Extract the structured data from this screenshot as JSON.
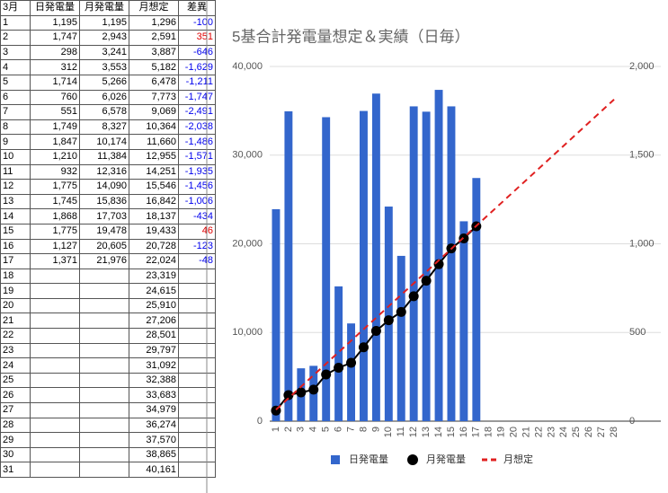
{
  "table": {
    "header": [
      "3月",
      "日発電量",
      "月発電量",
      "月想定",
      "差異"
    ],
    "rows": [
      [
        "1",
        "1,195",
        "1,195",
        "1,296",
        "-100"
      ],
      [
        "2",
        "1,747",
        "2,943",
        "2,591",
        "351"
      ],
      [
        "3",
        "298",
        "3,241",
        "3,887",
        "-646"
      ],
      [
        "4",
        "312",
        "3,553",
        "5,182",
        "-1,629"
      ],
      [
        "5",
        "1,714",
        "5,266",
        "6,478",
        "-1,211"
      ],
      [
        "6",
        "760",
        "6,026",
        "7,773",
        "-1,747"
      ],
      [
        "7",
        "551",
        "6,578",
        "9,069",
        "-2,491"
      ],
      [
        "8",
        "1,749",
        "8,327",
        "10,364",
        "-2,038"
      ],
      [
        "9",
        "1,847",
        "10,174",
        "11,660",
        "-1,486"
      ],
      [
        "10",
        "1,210",
        "11,384",
        "12,955",
        "-1,571"
      ],
      [
        "11",
        "932",
        "12,316",
        "14,251",
        "-1,935"
      ],
      [
        "12",
        "1,775",
        "14,090",
        "15,546",
        "-1,456"
      ],
      [
        "13",
        "1,745",
        "15,836",
        "16,842",
        "-1,006"
      ],
      [
        "14",
        "1,868",
        "17,703",
        "18,137",
        "-434"
      ],
      [
        "15",
        "1,775",
        "19,478",
        "19,433",
        "46"
      ],
      [
        "16",
        "1,127",
        "20,605",
        "20,728",
        "-123"
      ],
      [
        "17",
        "1,371",
        "21,976",
        "22,024",
        "-48"
      ],
      [
        "18",
        null,
        null,
        "23,319",
        null
      ],
      [
        "19",
        null,
        null,
        "24,615",
        null
      ],
      [
        "20",
        null,
        null,
        "25,910",
        null
      ],
      [
        "21",
        null,
        null,
        "27,206",
        null
      ],
      [
        "22",
        null,
        null,
        "28,501",
        null
      ],
      [
        "23",
        null,
        null,
        "29,797",
        null
      ],
      [
        "24",
        null,
        null,
        "31,092",
        null
      ],
      [
        "25",
        null,
        null,
        "32,388",
        null
      ],
      [
        "26",
        null,
        null,
        "33,683",
        null
      ],
      [
        "27",
        null,
        null,
        "34,979",
        null
      ],
      [
        "28",
        null,
        null,
        "36,274",
        null
      ],
      [
        "29",
        null,
        null,
        "37,570",
        null
      ],
      [
        "30",
        null,
        null,
        "38,865",
        null
      ],
      [
        "31",
        null,
        null,
        "40,161",
        null
      ]
    ],
    "positive_color": "#e00000",
    "negative_color": "#0000ee"
  },
  "chart_data": {
    "type": "combo",
    "title": "5基合計発電量想定＆実績（日毎）",
    "categories": [
      "1",
      "2",
      "3",
      "4",
      "5",
      "6",
      "7",
      "8",
      "9",
      "10",
      "11",
      "12",
      "13",
      "14",
      "15",
      "16",
      "17",
      "18",
      "19",
      "20",
      "21",
      "22",
      "23",
      "24",
      "25",
      "26",
      "27",
      "28"
    ],
    "series": [
      {
        "name": "日発電量",
        "type": "bar",
        "axis": "y2",
        "color": "#3366cc",
        "values": [
          1195,
          1747,
          298,
          312,
          1714,
          760,
          551,
          1749,
          1847,
          1210,
          932,
          1775,
          1745,
          1868,
          1775,
          1127,
          1371,
          null,
          null,
          null,
          null,
          null,
          null,
          null,
          null,
          null,
          null,
          null
        ]
      },
      {
        "name": "月発電量",
        "type": "line",
        "color": "#000000",
        "values": [
          1195,
          2943,
          3241,
          3553,
          5266,
          6026,
          6578,
          8327,
          10174,
          11384,
          12316,
          14090,
          15836,
          17703,
          19478,
          20605,
          21976,
          null,
          null,
          null,
          null,
          null,
          null,
          null,
          null,
          null,
          null,
          null
        ]
      },
      {
        "name": "月想定",
        "type": "dashed",
        "color": "#e02020",
        "values": [
          1296,
          2591,
          3887,
          5182,
          6478,
          7773,
          9069,
          10364,
          11660,
          12955,
          14251,
          15546,
          16842,
          18137,
          19433,
          20728,
          22024,
          23319,
          24615,
          25910,
          27206,
          28501,
          29797,
          31092,
          32388,
          33683,
          34979,
          36274
        ]
      }
    ],
    "ylim": [
      0,
      40000
    ],
    "yticks": [
      0,
      {
        "value": 10000,
        "label": "10,000"
      },
      {
        "value": 20000,
        "label": "20,000"
      },
      {
        "value": 30000,
        "label": "30,000"
      },
      {
        "value": 40000,
        "label": "40,000"
      }
    ],
    "y2lim": [
      0,
      2000
    ],
    "y2ticks": [
      0,
      500,
      {
        "value": 1000,
        "label": "1,000"
      },
      {
        "value": 1500,
        "label": "1,500"
      },
      {
        "value": 2000,
        "label": "2,000"
      }
    ],
    "grid": true,
    "legend": "bottom"
  }
}
